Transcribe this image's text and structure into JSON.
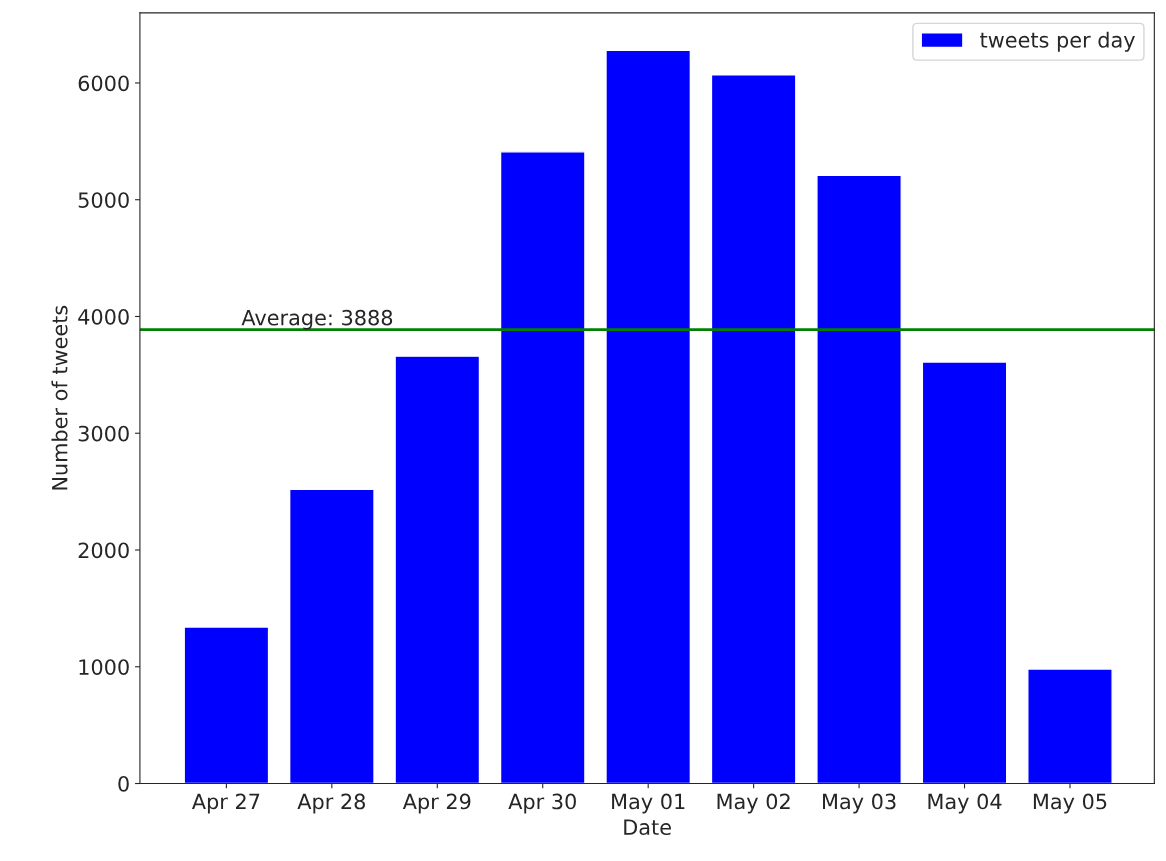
{
  "chart_data": {
    "type": "bar",
    "xlabel": "Date",
    "ylabel": "Number of tweets",
    "categories": [
      "Apr 27",
      "Apr 28",
      "Apr 29",
      "Apr 30",
      "May 01",
      "May 02",
      "May 03",
      "May 04",
      "May 05"
    ],
    "series": [
      {
        "name": "tweets per day",
        "color": "#0000ff",
        "values": [
          1340,
          2520,
          3660,
          5410,
          6280,
          6070,
          5210,
          3610,
          980
        ]
      }
    ],
    "ylim": [
      0,
      6600
    ],
    "yticks": [
      0,
      1000,
      2000,
      3000,
      4000,
      5000,
      6000
    ],
    "ref_lines": [
      {
        "axis": "y",
        "value": 3888,
        "label": "Average: 3888",
        "color": "#008000",
        "line_style": "solid"
      }
    ],
    "grid": false,
    "legend": "top right"
  }
}
